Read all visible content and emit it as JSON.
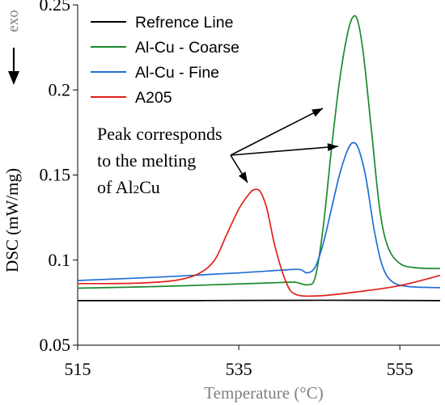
{
  "chart_data": {
    "type": "line",
    "xlabel": "Temperature (°C)",
    "ylabel": "DSC (mW/mg)",
    "xlim": [
      515,
      560
    ],
    "ylim": [
      0.05,
      0.25
    ],
    "x_ticks": [
      "515",
      "535",
      "555"
    ],
    "y_ticks": [
      "0.05",
      "0.1",
      "0.15",
      "0.2",
      "0.25"
    ],
    "exo_label": "exo",
    "legend_position": "top-left",
    "grid": false,
    "annotation": {
      "lines": [
        "Peak corresponds",
        "to the melting",
        "of Al",
        "2",
        "Cu"
      ]
    },
    "series": [
      {
        "name": "Refrence Line",
        "color": "#000000",
        "points": [
          [
            515,
            0.0762
          ],
          [
            530,
            0.0762
          ],
          [
            545,
            0.0764
          ],
          [
            560,
            0.0762
          ]
        ]
      },
      {
        "name": "Al-Cu - Coarse",
        "color": "#1a8a2e",
        "points": [
          [
            515,
            0.0835
          ],
          [
            525,
            0.0845
          ],
          [
            535,
            0.086
          ],
          [
            540,
            0.0868
          ],
          [
            542,
            0.087
          ],
          [
            543.5,
            0.0855
          ],
          [
            544.5,
            0.09
          ],
          [
            545.5,
            0.12
          ],
          [
            546.5,
            0.165
          ],
          [
            547.5,
            0.205
          ],
          [
            548.5,
            0.233
          ],
          [
            549.2,
            0.243
          ],
          [
            549.8,
            0.24
          ],
          [
            550.5,
            0.22
          ],
          [
            551.5,
            0.175
          ],
          [
            552.5,
            0.13
          ],
          [
            553.5,
            0.108
          ],
          [
            555,
            0.098
          ],
          [
            557,
            0.0955
          ],
          [
            560,
            0.095
          ]
        ]
      },
      {
        "name": "Al-Cu - Fine",
        "color": "#1f6fd6",
        "points": [
          [
            515,
            0.088
          ],
          [
            525,
            0.09
          ],
          [
            535,
            0.0925
          ],
          [
            540,
            0.094
          ],
          [
            542.5,
            0.0945
          ],
          [
            543.5,
            0.0925
          ],
          [
            544.5,
            0.096
          ],
          [
            545.5,
            0.11
          ],
          [
            546.5,
            0.13
          ],
          [
            547.5,
            0.15
          ],
          [
            548.5,
            0.1645
          ],
          [
            549.2,
            0.169
          ],
          [
            549.9,
            0.165
          ],
          [
            550.8,
            0.148
          ],
          [
            551.8,
            0.118
          ],
          [
            552.8,
            0.097
          ],
          [
            554,
            0.0875
          ],
          [
            556,
            0.0845
          ],
          [
            560,
            0.0838
          ]
        ]
      },
      {
        "name": "A205",
        "color": "#e0201a",
        "points": [
          [
            515,
            0.0862
          ],
          [
            522,
            0.0864
          ],
          [
            527,
            0.088
          ],
          [
            530,
            0.092
          ],
          [
            532,
            0.1
          ],
          [
            533.5,
            0.115
          ],
          [
            535,
            0.13
          ],
          [
            536.3,
            0.139
          ],
          [
            537,
            0.1415
          ],
          [
            537.7,
            0.14
          ],
          [
            538.5,
            0.13
          ],
          [
            539.5,
            0.108
          ],
          [
            540.8,
            0.088
          ],
          [
            542,
            0.08
          ],
          [
            545,
            0.079
          ],
          [
            550,
            0.0815
          ],
          [
            555,
            0.085
          ],
          [
            560,
            0.091
          ]
        ]
      }
    ]
  }
}
